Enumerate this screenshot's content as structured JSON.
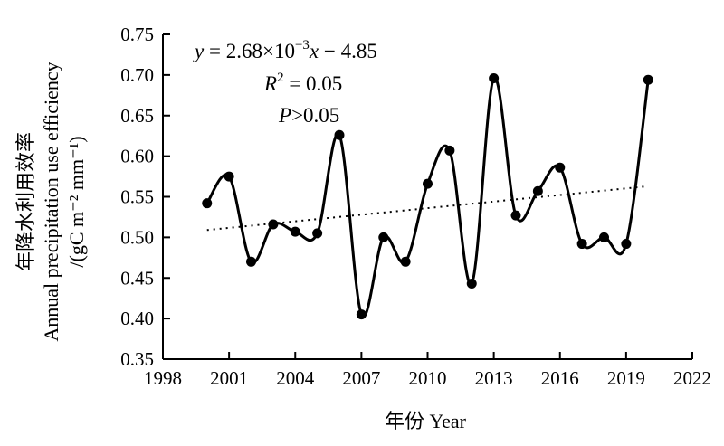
{
  "chart_data": {
    "type": "line",
    "x": [
      2000,
      2001,
      2002,
      2003,
      2004,
      2005,
      2006,
      2007,
      2008,
      2009,
      2010,
      2011,
      2012,
      2013,
      2014,
      2015,
      2016,
      2017,
      2018,
      2019,
      2020
    ],
    "series": [
      {
        "values": [
          0.542,
          0.575,
          0.47,
          0.516,
          0.507,
          0.505,
          0.626,
          0.405,
          0.5,
          0.47,
          0.566,
          0.607,
          0.443,
          0.696,
          0.527,
          0.557,
          0.586,
          0.492,
          0.5,
          0.492,
          0.694
        ],
        "smooth": true,
        "color": "#000000",
        "marker": "filled-circle"
      }
    ],
    "trend": {
      "x": [
        2000,
        2020
      ],
      "y": [
        0.509,
        0.563
      ],
      "style": "dotted"
    },
    "xlabel": "年份 Year",
    "ylabel_lines": [
      "年降水利用效率",
      "Annual precipitation use efficiency",
      "/(gC m⁻² mm⁻¹)"
    ],
    "xticks": [
      "1998",
      "2001",
      "2004",
      "2007",
      "2010",
      "2013",
      "2016",
      "2019",
      "2022"
    ],
    "yticks": [
      "0.35",
      "0.40",
      "0.45",
      "0.50",
      "0.55",
      "0.60",
      "0.65",
      "0.70",
      "0.75"
    ],
    "xlim": [
      1998,
      2022
    ],
    "ylim": [
      0.35,
      0.75
    ],
    "annotations": {
      "equation": {
        "y": "y",
        "eq": " = 2.68",
        "times": "×",
        "base": "10",
        "exp": "−3",
        "x": "x",
        "rest": " − 4.85"
      },
      "r2": {
        "r": "R",
        "exp": "2",
        "rest": " = 0.05"
      },
      "p": {
        "p": "P",
        "rest": ">0.05"
      }
    },
    "grid": false,
    "legend": "none"
  }
}
